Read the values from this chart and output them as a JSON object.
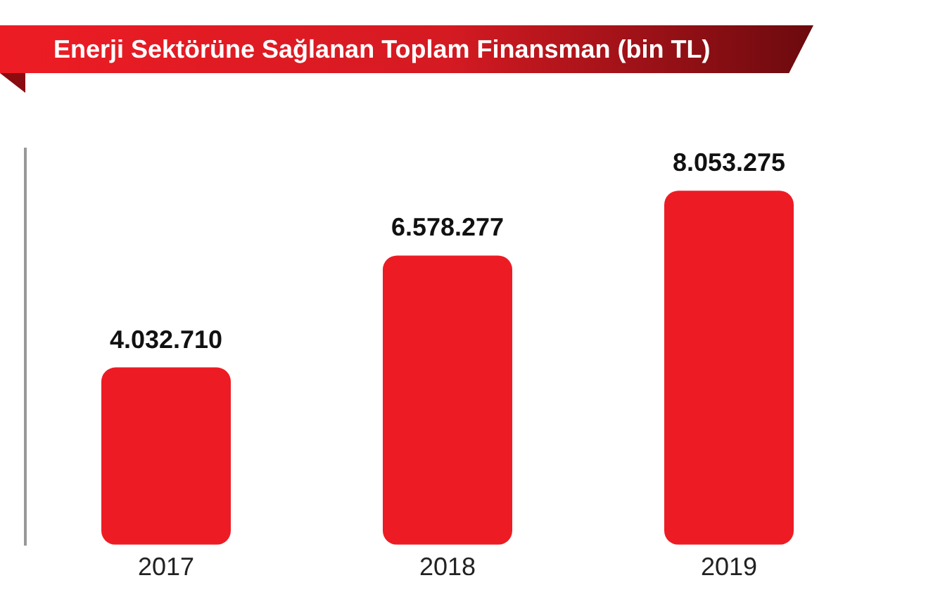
{
  "chart_data": {
    "type": "bar",
    "title": "Enerji Sektörüne Sağlanan Toplam Finansman (bin TL)",
    "categories": [
      "2017",
      "2018",
      "2019"
    ],
    "values": [
      4032710,
      6578277,
      8053275
    ],
    "value_labels": [
      "4.032.710",
      "6.578.277",
      "8.053.275"
    ],
    "color": "#ed1c24",
    "legend": false,
    "grid": false,
    "tick_labels": "x"
  }
}
